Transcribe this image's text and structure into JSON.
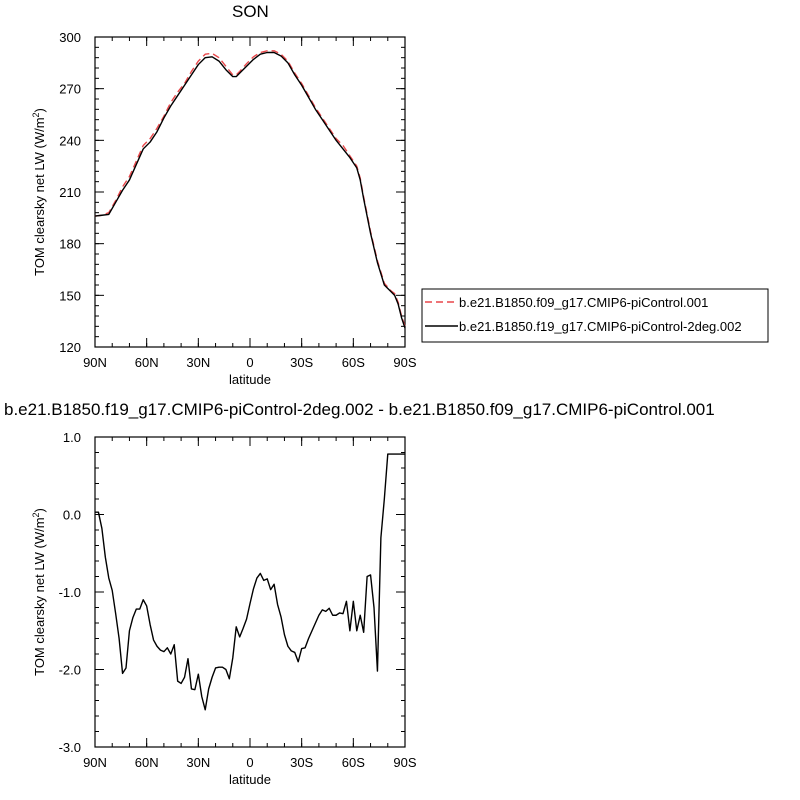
{
  "chart_data": [
    {
      "type": "line",
      "title": "SON",
      "xlabel": "latitude",
      "ylabel": "TOM clearsky net LW (W/m",
      "ylabel_sup": "2",
      "ylabel_end": ")",
      "xlim": [
        90,
        -90
      ],
      "ylim": [
        120,
        300
      ],
      "xticks": [
        {
          "value": 90,
          "label": "90N"
        },
        {
          "value": 60,
          "label": "60N"
        },
        {
          "value": 30,
          "label": "30N"
        },
        {
          "value": 0,
          "label": "0"
        },
        {
          "value": -30,
          "label": "30S"
        },
        {
          "value": -60,
          "label": "60S"
        },
        {
          "value": -90,
          "label": "90S"
        }
      ],
      "yticks": [
        {
          "value": 120,
          "label": "120"
        },
        {
          "value": 150,
          "label": "150"
        },
        {
          "value": 180,
          "label": "180"
        },
        {
          "value": 210,
          "label": "210"
        },
        {
          "value": 240,
          "label": "240"
        },
        {
          "value": 270,
          "label": "270"
        },
        {
          "value": 300,
          "label": "300"
        }
      ],
      "legend_position": "right",
      "series": [
        {
          "name": "b.e21.B1850.f09_g17.CMIP6-piControl.001",
          "color": "#e8474a",
          "style": "dashed",
          "x": [
            90,
            86,
            82,
            78,
            74,
            70,
            66,
            62,
            58,
            54,
            50,
            46,
            42,
            38,
            34,
            30,
            26,
            22,
            18,
            14,
            10,
            8,
            6,
            2,
            -2,
            -6,
            -10,
            -14,
            -18,
            -22,
            -26,
            -30,
            -34,
            -38,
            -42,
            -46,
            -50,
            -54,
            -58,
            -60,
            -62,
            -64,
            -66,
            -70,
            -74,
            -78,
            -82,
            -84,
            -86,
            -88,
            -90
          ],
          "y": [
            196,
            196.5,
            198,
            205,
            213,
            219,
            228,
            237,
            241,
            247,
            254,
            262,
            268,
            273,
            280,
            286,
            290,
            290.5,
            288,
            283,
            278,
            278,
            280,
            284.5,
            288.5,
            291,
            292,
            292,
            290,
            286,
            279,
            273,
            266,
            259,
            253,
            247,
            241,
            237,
            231,
            228,
            225,
            218,
            207,
            187,
            170,
            157,
            152.5,
            151,
            146,
            138,
            132
          ]
        },
        {
          "name": "b.e21.B1850.f19_g17.CMIP6-piControl-2deg.002",
          "color": "#000000",
          "style": "solid",
          "x": [
            90,
            86,
            82,
            78,
            74,
            70,
            66,
            62,
            58,
            54,
            50,
            46,
            42,
            38,
            34,
            30,
            26,
            22,
            18,
            14,
            10,
            8,
            6,
            2,
            -2,
            -6,
            -10,
            -14,
            -18,
            -22,
            -26,
            -30,
            -34,
            -38,
            -42,
            -46,
            -50,
            -54,
            -58,
            -60,
            -62,
            -64,
            -66,
            -70,
            -74,
            -78,
            -82,
            -84,
            -86,
            -88,
            -90
          ],
          "y": [
            196,
            196.5,
            197,
            204,
            211,
            217,
            226,
            235,
            239,
            245,
            253,
            260,
            266,
            272,
            278,
            284,
            288,
            288.5,
            286,
            281,
            277,
            277,
            279,
            283,
            287,
            290,
            291,
            291,
            289,
            285,
            278,
            272,
            265,
            258,
            252,
            246,
            240,
            235,
            230,
            227,
            224,
            217,
            206,
            186,
            169,
            156,
            152,
            150,
            145,
            137,
            131
          ]
        }
      ]
    },
    {
      "type": "line",
      "title": "b.e21.B1850.f19_g17.CMIP6-piControl-2deg.002 - b.e21.B1850.f09_g17.CMIP6-piControl.001",
      "xlabel": "latitude",
      "ylabel": "TOM clearsky net LW (W/m",
      "ylabel_sup": "2",
      "ylabel_end": ")",
      "xlim": [
        90,
        -90
      ],
      "ylim": [
        -3.0,
        1.0
      ],
      "xticks": [
        {
          "value": 90,
          "label": "90N"
        },
        {
          "value": 60,
          "label": "60N"
        },
        {
          "value": 30,
          "label": "30N"
        },
        {
          "value": 0,
          "label": "0"
        },
        {
          "value": -30,
          "label": "30S"
        },
        {
          "value": -60,
          "label": "60S"
        },
        {
          "value": -90,
          "label": "90S"
        }
      ],
      "yticks": [
        {
          "value": -3.0,
          "label": "-3.0"
        },
        {
          "value": -2.0,
          "label": "-2.0"
        },
        {
          "value": -1.0,
          "label": "-1.0"
        },
        {
          "value": 0.0,
          "label": "0.0"
        },
        {
          "value": 1.0,
          "label": "1.0"
        }
      ],
      "series": [
        {
          "color": "#000000",
          "style": "solid",
          "x": [
            90,
            88,
            86,
            84,
            82,
            80,
            78,
            76,
            74,
            72,
            70,
            68,
            66,
            64,
            62,
            60,
            58,
            56,
            54,
            52,
            50,
            48,
            46,
            44,
            42,
            40,
            38,
            36,
            34,
            32,
            30,
            28,
            26,
            24,
            22,
            20,
            18,
            16,
            14,
            12,
            10,
            8,
            6,
            4,
            2,
            0,
            -2,
            -4,
            -6,
            -8,
            -10,
            -12,
            -14,
            -16,
            -18,
            -20,
            -22,
            -24,
            -26,
            -28,
            -30,
            -32,
            -34,
            -36,
            -38,
            -40,
            -42,
            -44,
            -46,
            -48,
            -50,
            -52,
            -54,
            -56,
            -58,
            -60,
            -62,
            -64,
            -66,
            -68,
            -70,
            -72,
            -74,
            -76,
            -78,
            -80,
            -82,
            -84,
            -86,
            -88,
            -90
          ],
          "y": [
            0.03,
            0.03,
            -0.18,
            -0.55,
            -0.82,
            -0.98,
            -1.28,
            -1.6,
            -2.05,
            -1.98,
            -1.5,
            -1.33,
            -1.22,
            -1.22,
            -1.1,
            -1.18,
            -1.42,
            -1.62,
            -1.7,
            -1.75,
            -1.77,
            -1.72,
            -1.8,
            -1.68,
            -2.15,
            -2.18,
            -2.1,
            -1.86,
            -2.25,
            -2.26,
            -2.06,
            -2.35,
            -2.52,
            -2.25,
            -2.1,
            -1.98,
            -1.97,
            -1.97,
            -2.0,
            -2.12,
            -1.85,
            -1.45,
            -1.58,
            -1.47,
            -1.35,
            -1.15,
            -0.96,
            -0.82,
            -0.76,
            -0.85,
            -0.83,
            -0.97,
            -0.9,
            -1.16,
            -1.32,
            -1.55,
            -1.7,
            -1.76,
            -1.78,
            -1.9,
            -1.73,
            -1.72,
            -1.6,
            -1.5,
            -1.4,
            -1.3,
            -1.23,
            -1.25,
            -1.21,
            -1.3,
            -1.3,
            -1.27,
            -1.28,
            -1.12,
            -1.5,
            -1.12,
            -1.5,
            -1.3,
            -1.52,
            -0.8,
            -0.78,
            -1.2,
            -2.02,
            -0.3,
            0.2,
            0.78,
            0.78,
            0.78,
            0.78,
            0.78,
            0.78
          ]
        }
      ]
    }
  ]
}
